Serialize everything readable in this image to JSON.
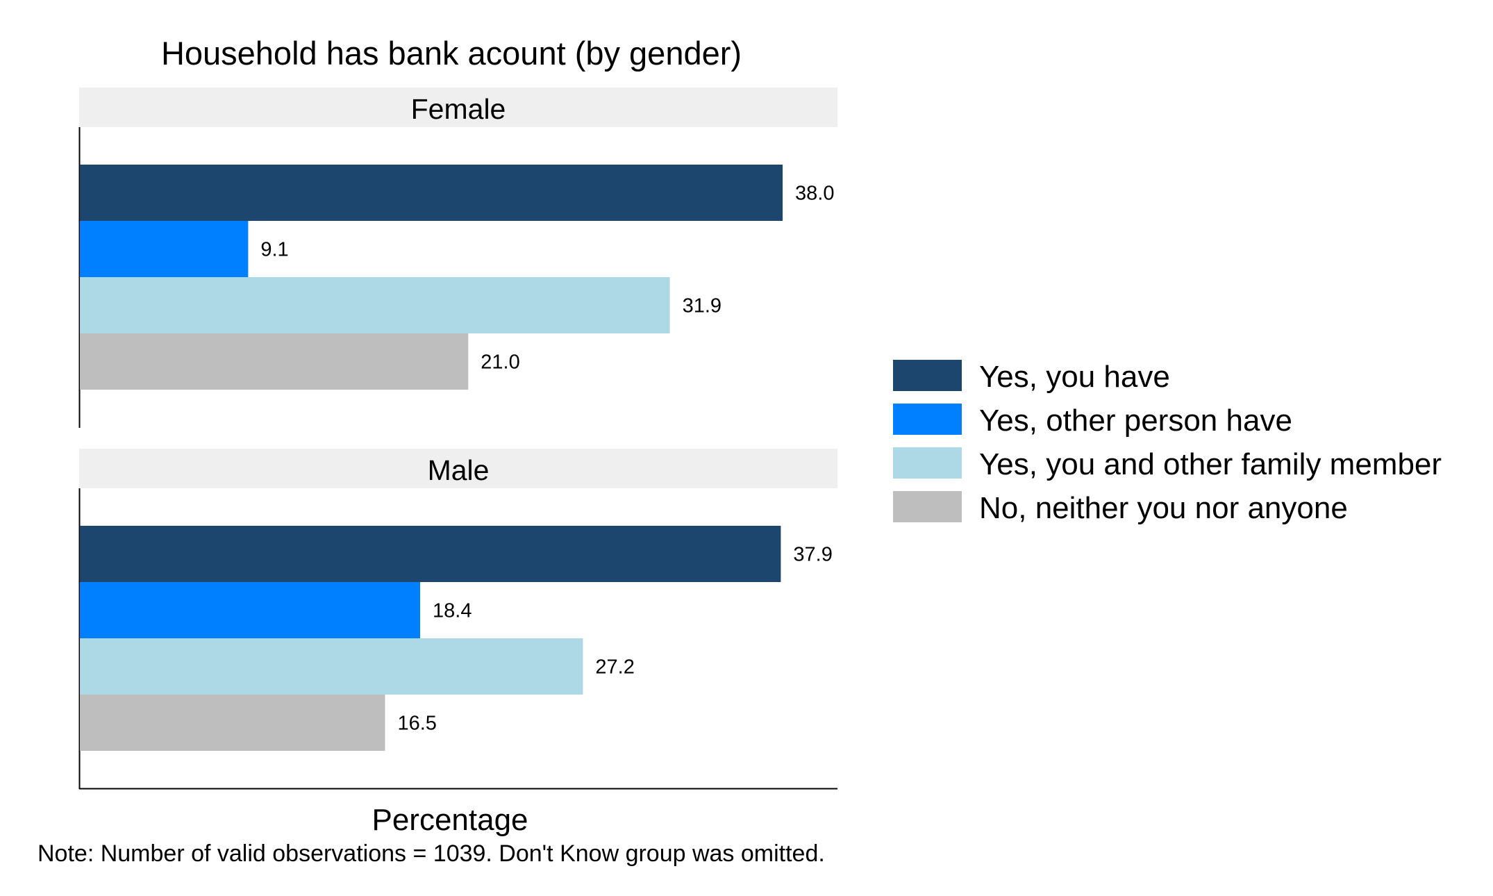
{
  "chart_data": {
    "type": "bar",
    "orientation": "horizontal",
    "title": "Household has bank acount (by gender)",
    "xlabel": "Percentage",
    "ylabel": "",
    "xlim": [
      0,
      39.5
    ],
    "grid": false,
    "legend_position": "right",
    "note": "Note: Number of valid observations = 1039. Don't Know group was omitted.",
    "panels": [
      {
        "name": "Female",
        "values": [
          38.0,
          9.1,
          31.9,
          21.0
        ],
        "labels": [
          "38.0",
          "9.1",
          "31.9",
          "21.0"
        ]
      },
      {
        "name": "Male",
        "values": [
          37.9,
          18.4,
          27.2,
          16.5
        ],
        "labels": [
          "37.9",
          "18.4",
          "27.2",
          "16.5"
        ]
      }
    ],
    "series": [
      {
        "name": "Yes, you have",
        "color": "#1c466e"
      },
      {
        "name": "Yes, other person have",
        "color": "#0080ff"
      },
      {
        "name": "Yes, you and other family member",
        "color": "#add8e6"
      },
      {
        "name": "No, neither you nor anyone",
        "color": "#bebebe"
      }
    ]
  }
}
